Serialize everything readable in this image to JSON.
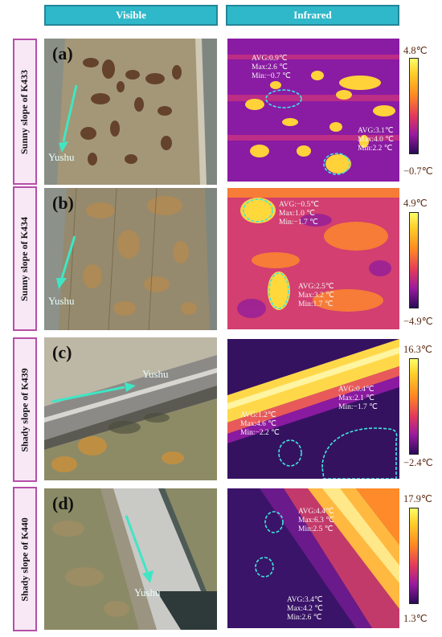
{
  "headers": {
    "visible": "Visible",
    "infrared": "Infrared"
  },
  "rows": [
    {
      "label": "Sunny slope of  K433",
      "panel": "(a)",
      "place": "Yushu",
      "cbar_max": "4.8℃",
      "cbar_min": "−0.7℃",
      "ann": [
        {
          "avg": "AVG:0.9℃",
          "max": "Max:2.6 ℃",
          "min": "Min:−0.7 ℃"
        },
        {
          "avg": "AVG:3.1℃",
          "max": "Max:4.0 ℃",
          "min": "Min:2.2 ℃"
        }
      ]
    },
    {
      "label": "Sunny slope of  K434",
      "panel": "(b)",
      "place": "Yushu",
      "cbar_max": "4.9℃",
      "cbar_min": "−4.9℃",
      "ann": [
        {
          "avg": "AVG:−0.5℃",
          "max": "Max:1.0 ℃",
          "min": "Min:−1.7 ℃"
        },
        {
          "avg": "AVG:2.5℃",
          "max": "Max:3.2 ℃",
          "min": "Min:1.7 ℃"
        }
      ]
    },
    {
      "label": "Shady slope of K439",
      "panel": "(c)",
      "place": "Yushu",
      "cbar_max": "16.3℃",
      "cbar_min": "−2.4℃",
      "ann": [
        {
          "avg": "AVG:1.2℃",
          "max": "Max:4.6 ℃",
          "min": "Min:−2.2 ℃"
        },
        {
          "avg": "AVG:0.4℃",
          "max": "Max:2.1 ℃",
          "min": "Min:−1.7 ℃"
        }
      ]
    },
    {
      "label": "Shady slope of K440",
      "panel": "(d)",
      "place": "Yushu",
      "cbar_max": "17.9℃",
      "cbar_min": "1.3℃",
      "ann": [
        {
          "avg": "AVG:4.4℃",
          "max": "Max:6.3 ℃",
          "min": "Min:2.5 ℃"
        },
        {
          "avg": "AVG:3.4℃",
          "max": "Max:4.2 ℃",
          "min": "Min:2.6 ℃"
        }
      ]
    }
  ]
}
